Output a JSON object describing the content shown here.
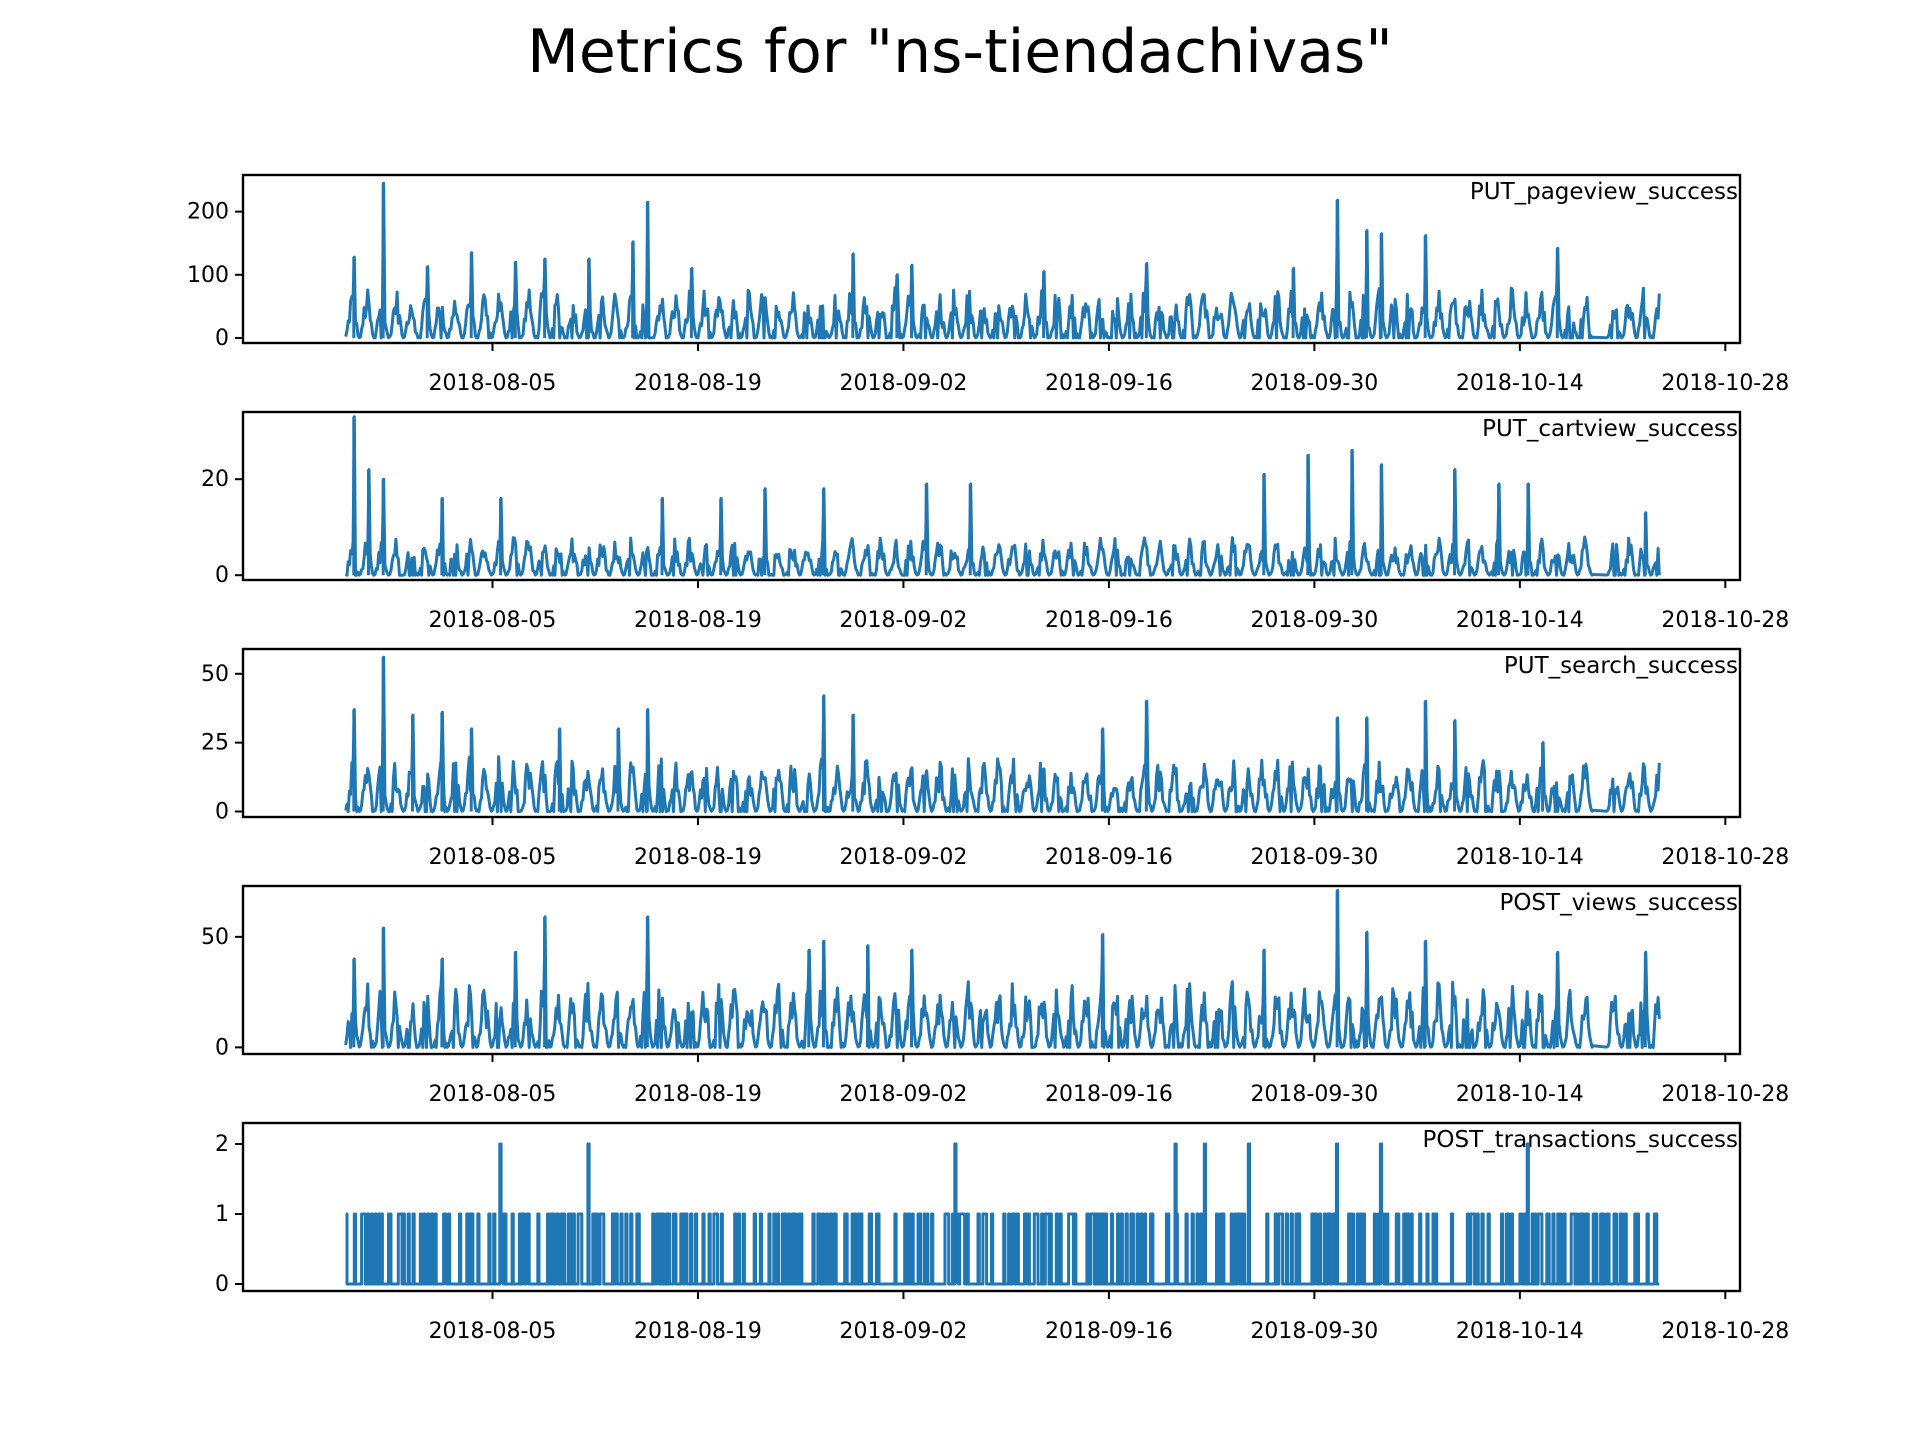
{
  "title": "Metrics for \"ns-tiendachivas\"",
  "colors": {
    "line": "#1f77b4",
    "axes": "#000000",
    "background": "#ffffff"
  },
  "chart_data": [
    {
      "type": "line",
      "name": "PUT_pageview_success",
      "x_range": [
        "2018-07-26",
        "2018-10-23"
      ],
      "x_ticks": [
        "2018-08-05",
        "2018-08-19",
        "2018-09-02",
        "2018-09-16",
        "2018-09-30",
        "2018-10-14",
        "2018-10-28"
      ],
      "y_ticks": [
        0,
        100,
        200
      ],
      "ylim": [
        -8,
        258
      ],
      "typical_range": [
        0,
        80
      ],
      "gap": [
        "2018-10-19",
        "2018-10-19"
      ],
      "grid": false,
      "peaks": [
        {
          "x": "2018-07-26",
          "y": 128
        },
        {
          "x": "2018-07-28",
          "y": 245
        },
        {
          "x": "2018-07-31",
          "y": 113
        },
        {
          "x": "2018-08-03",
          "y": 135
        },
        {
          "x": "2018-08-06",
          "y": 120
        },
        {
          "x": "2018-08-08",
          "y": 125
        },
        {
          "x": "2018-08-11",
          "y": 125
        },
        {
          "x": "2018-08-14",
          "y": 152
        },
        {
          "x": "2018-08-15",
          "y": 215
        },
        {
          "x": "2018-08-18",
          "y": 110
        },
        {
          "x": "2018-08-29",
          "y": 133
        },
        {
          "x": "2018-09-01",
          "y": 100
        },
        {
          "x": "2018-09-02",
          "y": 115
        },
        {
          "x": "2018-09-11",
          "y": 105
        },
        {
          "x": "2018-09-18",
          "y": 118
        },
        {
          "x": "2018-09-28",
          "y": 110
        },
        {
          "x": "2018-10-01",
          "y": 218
        },
        {
          "x": "2018-10-03",
          "y": 170
        },
        {
          "x": "2018-10-04",
          "y": 165
        },
        {
          "x": "2018-10-07",
          "y": 162
        },
        {
          "x": "2018-10-16",
          "y": 142
        }
      ]
    },
    {
      "type": "line",
      "name": "PUT_cartview_success",
      "x_range": [
        "2018-07-26",
        "2018-10-23"
      ],
      "x_ticks": [
        "2018-08-05",
        "2018-08-19",
        "2018-09-02",
        "2018-09-16",
        "2018-09-30",
        "2018-10-14",
        "2018-10-28"
      ],
      "y_ticks": [
        0,
        20
      ],
      "ylim": [
        -1,
        34
      ],
      "typical_range": [
        0,
        8
      ],
      "gap": [
        "2018-10-19",
        "2018-10-19"
      ],
      "grid": false,
      "peaks": [
        {
          "x": "2018-07-26",
          "y": 33
        },
        {
          "x": "2018-07-27",
          "y": 22
        },
        {
          "x": "2018-07-28",
          "y": 20
        },
        {
          "x": "2018-08-01",
          "y": 16
        },
        {
          "x": "2018-08-05",
          "y": 16
        },
        {
          "x": "2018-08-16",
          "y": 16
        },
        {
          "x": "2018-08-20",
          "y": 16
        },
        {
          "x": "2018-08-23",
          "y": 18
        },
        {
          "x": "2018-08-27",
          "y": 18
        },
        {
          "x": "2018-09-03",
          "y": 19
        },
        {
          "x": "2018-09-06",
          "y": 19
        },
        {
          "x": "2018-09-26",
          "y": 21
        },
        {
          "x": "2018-09-29",
          "y": 25
        },
        {
          "x": "2018-10-02",
          "y": 26
        },
        {
          "x": "2018-10-04",
          "y": 23
        },
        {
          "x": "2018-10-09",
          "y": 22
        },
        {
          "x": "2018-10-12",
          "y": 19
        },
        {
          "x": "2018-10-14",
          "y": 19
        },
        {
          "x": "2018-10-22",
          "y": 13
        }
      ]
    },
    {
      "type": "line",
      "name": "PUT_search_success",
      "x_range": [
        "2018-07-26",
        "2018-10-23"
      ],
      "x_ticks": [
        "2018-08-05",
        "2018-08-19",
        "2018-09-02",
        "2018-09-16",
        "2018-09-30",
        "2018-10-14",
        "2018-10-28"
      ],
      "y_ticks": [
        0,
        25,
        50
      ],
      "ylim": [
        -2,
        59
      ],
      "typical_range": [
        0,
        20
      ],
      "gap": [
        "2018-10-19",
        "2018-10-19"
      ],
      "grid": false,
      "peaks": [
        {
          "x": "2018-07-26",
          "y": 37
        },
        {
          "x": "2018-07-28",
          "y": 56
        },
        {
          "x": "2018-07-30",
          "y": 35
        },
        {
          "x": "2018-08-01",
          "y": 36
        },
        {
          "x": "2018-08-03",
          "y": 30
        },
        {
          "x": "2018-08-09",
          "y": 30
        },
        {
          "x": "2018-08-13",
          "y": 30
        },
        {
          "x": "2018-08-15",
          "y": 37
        },
        {
          "x": "2018-08-27",
          "y": 42
        },
        {
          "x": "2018-08-29",
          "y": 35
        },
        {
          "x": "2018-09-15",
          "y": 30
        },
        {
          "x": "2018-09-18",
          "y": 40
        },
        {
          "x": "2018-10-01",
          "y": 34
        },
        {
          "x": "2018-10-03",
          "y": 34
        },
        {
          "x": "2018-10-07",
          "y": 40
        },
        {
          "x": "2018-10-09",
          "y": 33
        },
        {
          "x": "2018-10-15",
          "y": 25
        }
      ]
    },
    {
      "type": "line",
      "name": "POST_views_success",
      "x_range": [
        "2018-07-26",
        "2018-10-23"
      ],
      "x_ticks": [
        "2018-08-05",
        "2018-08-19",
        "2018-09-02",
        "2018-09-16",
        "2018-09-30",
        "2018-10-14",
        "2018-10-28"
      ],
      "y_ticks": [
        0,
        50
      ],
      "ylim": [
        -3,
        73
      ],
      "typical_range": [
        0,
        30
      ],
      "gap": [
        "2018-10-19",
        "2018-10-19"
      ],
      "grid": false,
      "peaks": [
        {
          "x": "2018-07-26",
          "y": 40
        },
        {
          "x": "2018-07-28",
          "y": 54
        },
        {
          "x": "2018-08-01",
          "y": 40
        },
        {
          "x": "2018-08-06",
          "y": 43
        },
        {
          "x": "2018-08-08",
          "y": 59
        },
        {
          "x": "2018-08-15",
          "y": 59
        },
        {
          "x": "2018-08-26",
          "y": 44
        },
        {
          "x": "2018-08-27",
          "y": 48
        },
        {
          "x": "2018-08-30",
          "y": 46
        },
        {
          "x": "2018-09-02",
          "y": 44
        },
        {
          "x": "2018-09-15",
          "y": 51
        },
        {
          "x": "2018-09-26",
          "y": 44
        },
        {
          "x": "2018-10-01",
          "y": 71
        },
        {
          "x": "2018-10-03",
          "y": 52
        },
        {
          "x": "2018-10-07",
          "y": 48
        },
        {
          "x": "2018-10-16",
          "y": 43
        },
        {
          "x": "2018-10-22",
          "y": 43
        }
      ]
    },
    {
      "type": "line",
      "name": "POST_transactions_success",
      "x_range": [
        "2018-07-26",
        "2018-10-23"
      ],
      "x_ticks": [
        "2018-08-05",
        "2018-08-19",
        "2018-09-02",
        "2018-09-16",
        "2018-09-30",
        "2018-10-14",
        "2018-10-28"
      ],
      "y_ticks": [
        0,
        1,
        2
      ],
      "ylim": [
        -0.1,
        2.3
      ],
      "values_observed": [
        0,
        1,
        2
      ],
      "grid": false,
      "peaks": [
        {
          "x": "2018-08-05",
          "y": 2
        },
        {
          "x": "2018-08-11",
          "y": 2
        },
        {
          "x": "2018-09-05",
          "y": 2
        },
        {
          "x": "2018-09-20",
          "y": 2
        },
        {
          "x": "2018-09-22",
          "y": 2
        },
        {
          "x": "2018-09-25",
          "y": 2
        },
        {
          "x": "2018-10-01",
          "y": 2
        },
        {
          "x": "2018-10-04",
          "y": 2
        },
        {
          "x": "2018-10-14",
          "y": 2
        }
      ]
    }
  ]
}
